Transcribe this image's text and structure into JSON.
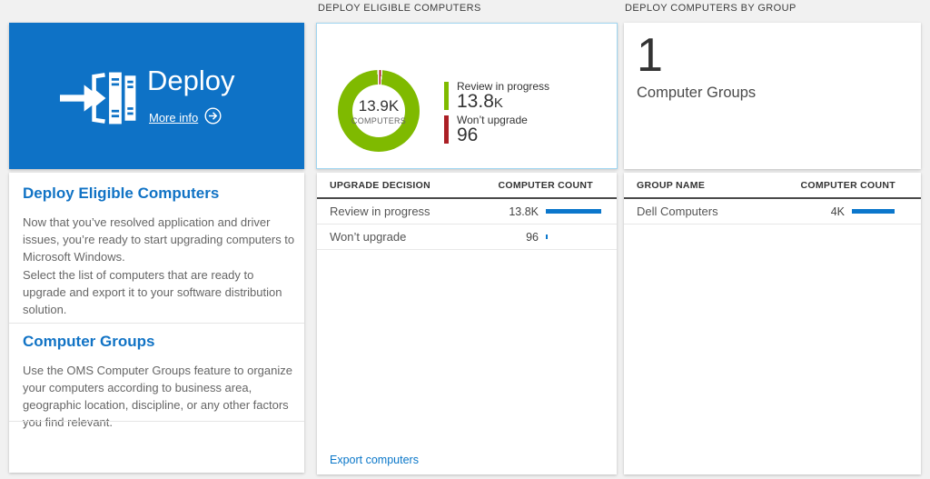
{
  "colors": {
    "tile_blue": "#0e72c6",
    "heading_blue": "#1173c5",
    "bar_blue": "#0b77cc",
    "donut_green": "#7fba00",
    "alert_red": "#ab1f25",
    "card_border_blue": "#a0d5f0",
    "page_background": "#f1f1f1"
  },
  "tile": {
    "title": "Deploy",
    "more_info_label": "More info"
  },
  "left_panel": {
    "sections": [
      {
        "heading": "Deploy Eligible Computers",
        "para1": "Now that you’ve resolved application and driver issues, you’re ready to start upgrading computers to Microsoft Windows.",
        "para2": "Select the list of computers that are ready to upgrade and export it to your software distribution solution."
      },
      {
        "heading": "Computer Groups",
        "para1": "Use the OMS Computer Groups feature to organize your computers according to business area, geographic location, discipline, or any other factors you find relevant."
      }
    ]
  },
  "eligible": {
    "section_title": "DEPLOY ELIGIBLE COMPUTERS",
    "donut": {
      "center_value": "13.9K",
      "center_label": "COMPUTERS",
      "legend": [
        {
          "label": "Review in progress",
          "value": "13.8",
          "suffix": "K",
          "color": "#7fba00"
        },
        {
          "label": "Won’t upgrade",
          "value": "96",
          "suffix": "",
          "color": "#ab1f25"
        }
      ]
    },
    "table": {
      "header_left": "UPGRADE DECISION",
      "header_right": "COMPUTER COUNT",
      "rows": [
        {
          "label": "Review in progress",
          "value": "13.8K",
          "bar": 0.95
        },
        {
          "label": "Won’t upgrade",
          "value": "96",
          "bar": 0.03
        }
      ]
    },
    "export_link": "Export computers"
  },
  "groups": {
    "section_title": "DEPLOY COMPUTERS BY GROUP",
    "count": "1",
    "count_label": "Computer Groups",
    "table": {
      "header_left": "GROUP NAME",
      "header_right": "COMPUTER COUNT",
      "rows": [
        {
          "label": "Dell Computers",
          "value": "4K",
          "bar": 0.94
        }
      ]
    }
  },
  "chart_data": {
    "type": "pie",
    "title": "Deploy Eligible Computers",
    "center_total": "13.9K COMPUTERS",
    "categories": [
      "Review in progress",
      "Won't upgrade"
    ],
    "values": [
      13800,
      96
    ],
    "colors": [
      "#7fba00",
      "#ab1f25"
    ],
    "legend_position": "right"
  }
}
